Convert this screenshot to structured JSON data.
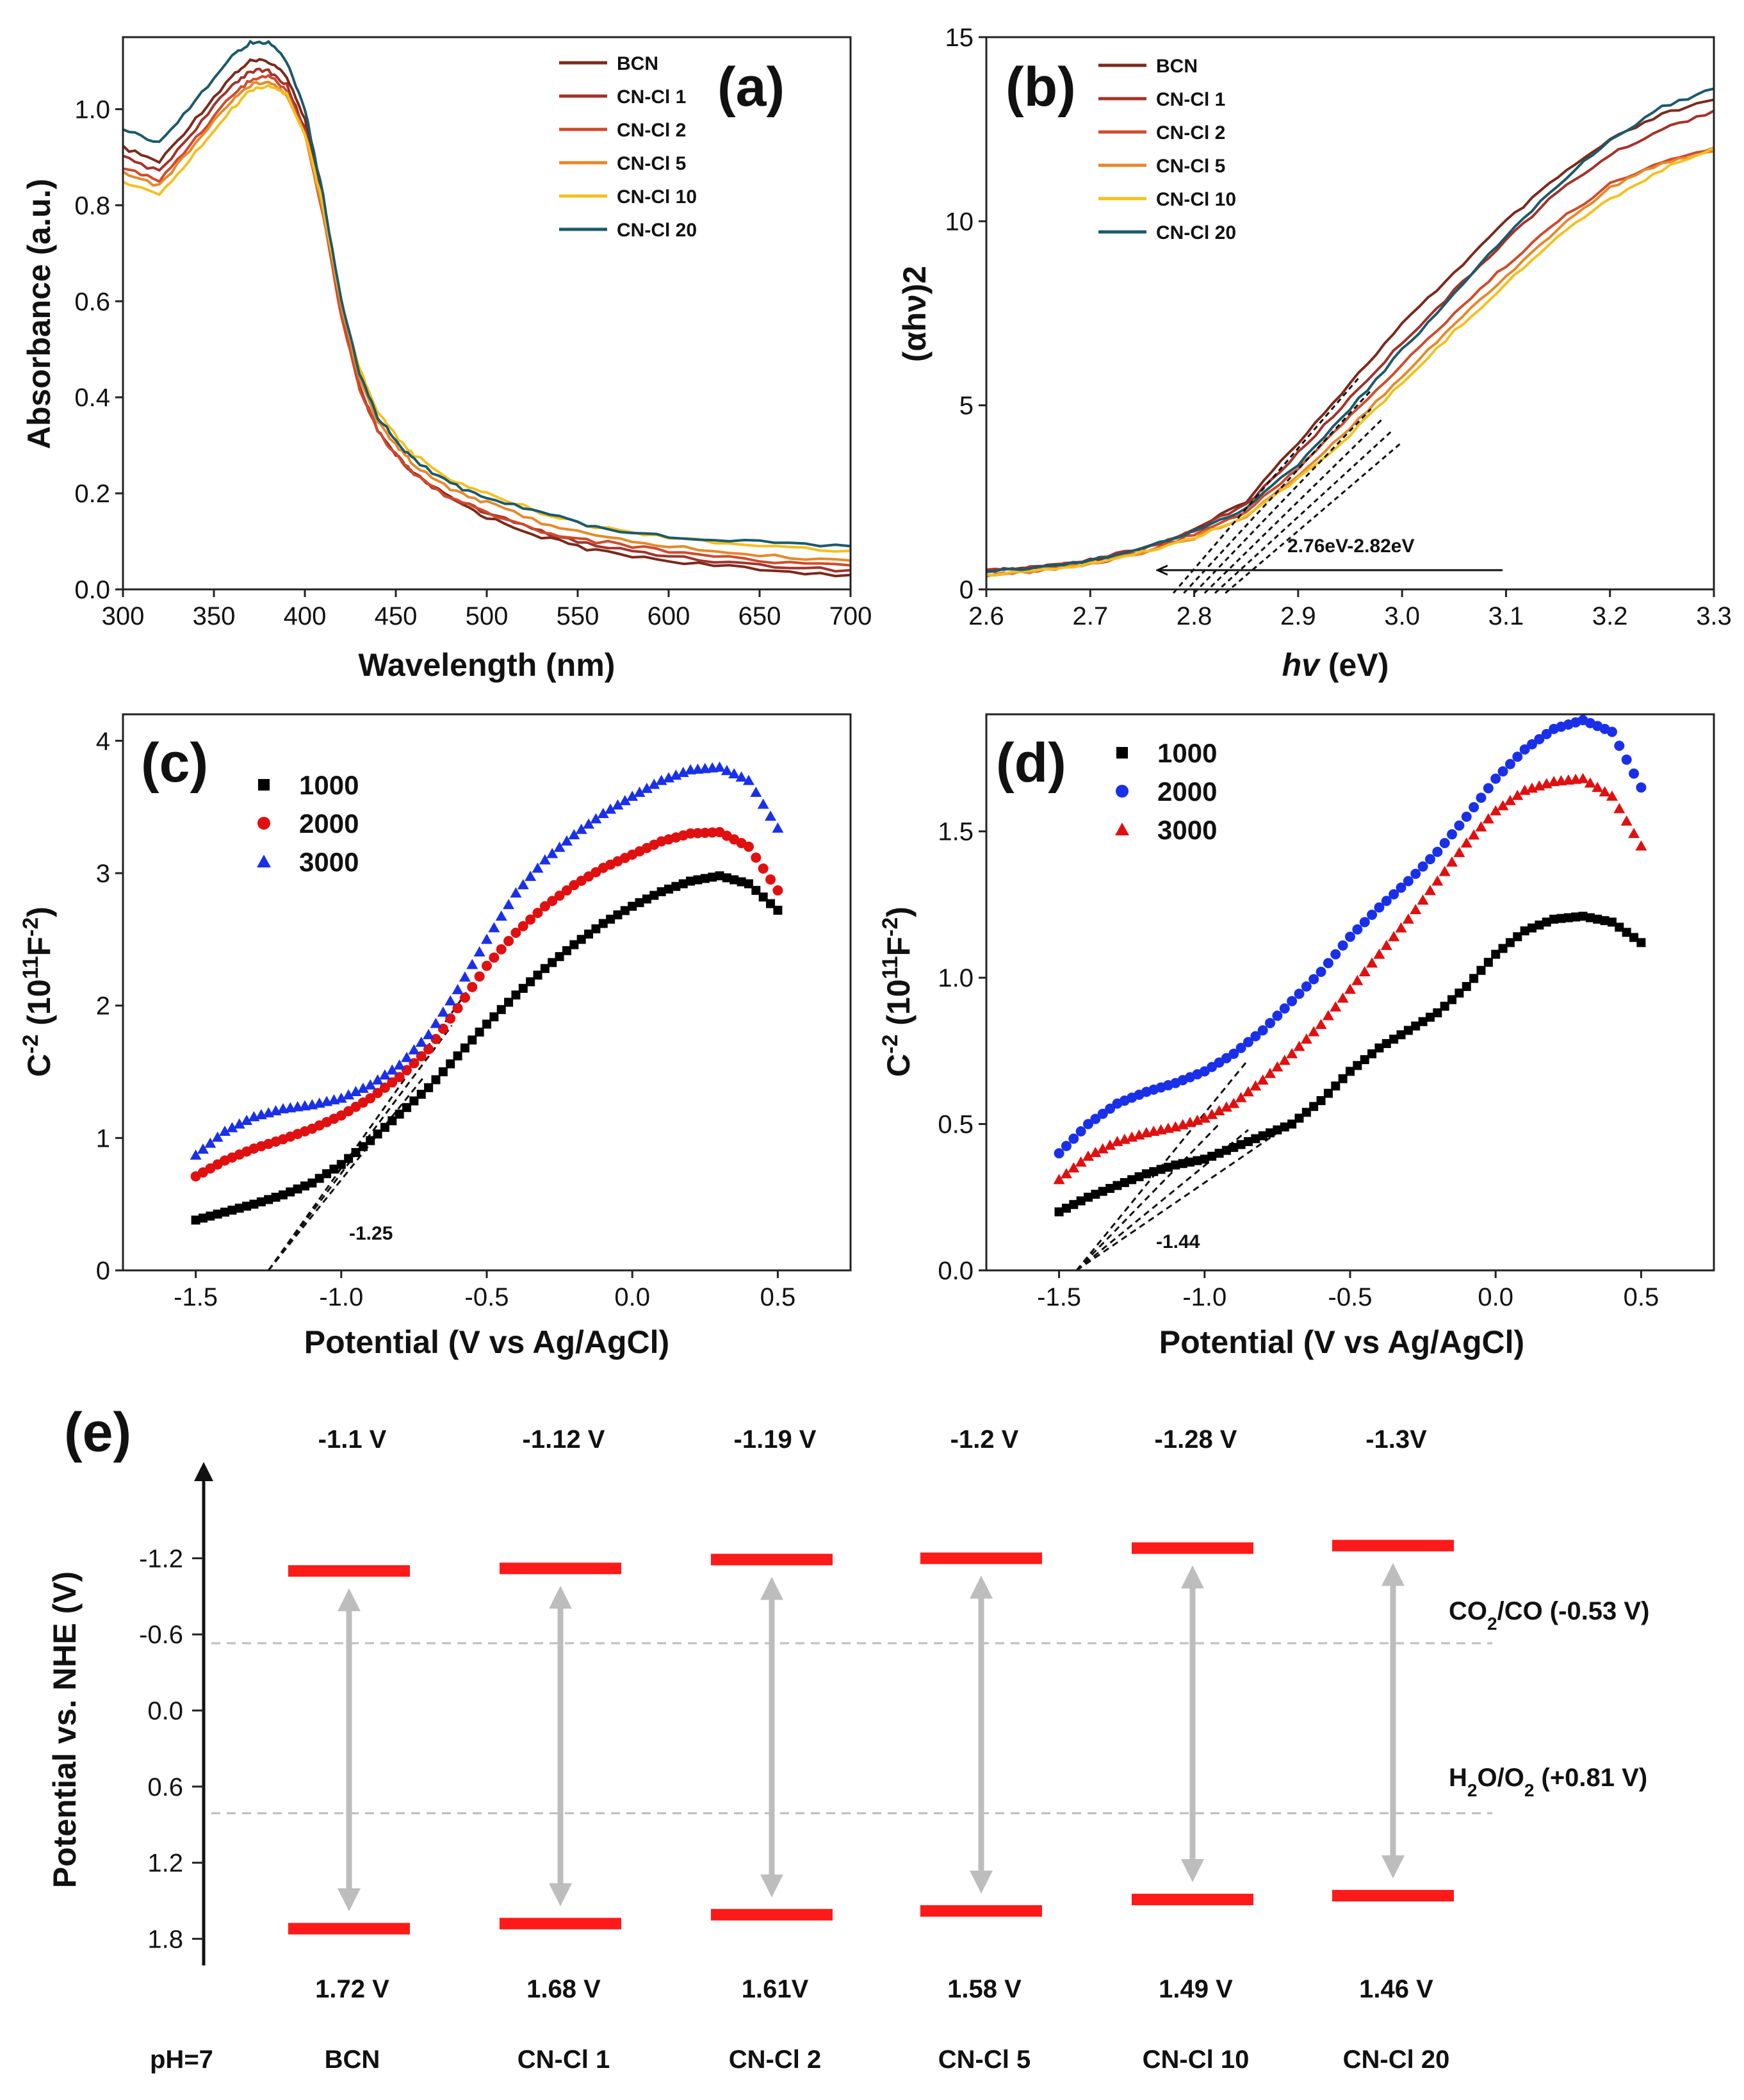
{
  "chart_data": [
    {
      "panel": "(a)",
      "type": "line",
      "xlabel": "Wavelength (nm)",
      "ylabel": "Absorbance (a.u.)",
      "xlim": [
        300,
        700
      ],
      "ylim": [
        0,
        1.15
      ],
      "xticks": [
        "300",
        "350",
        "400",
        "450",
        "500",
        "550",
        "600",
        "650",
        "700"
      ],
      "yticks": [
        "0.0",
        "0.2",
        "0.4",
        "0.6",
        "0.8",
        "1.0"
      ],
      "x": [
        300,
        320,
        340,
        360,
        370,
        380,
        390,
        400,
        410,
        420,
        430,
        440,
        450,
        460,
        480,
        500,
        530,
        560,
        600,
        650,
        700
      ],
      "series": [
        {
          "name": "BCN",
          "color": "#7b2a1c",
          "values": [
            0.92,
            0.89,
            0.98,
            1.07,
            1.1,
            1.1,
            1.07,
            0.98,
            0.8,
            0.58,
            0.42,
            0.33,
            0.28,
            0.24,
            0.19,
            0.15,
            0.11,
            0.08,
            0.06,
            0.04,
            0.03
          ]
        },
        {
          "name": "CN-Cl 1",
          "color": "#a3322a",
          "values": [
            0.9,
            0.87,
            0.96,
            1.05,
            1.08,
            1.08,
            1.05,
            0.96,
            0.79,
            0.58,
            0.42,
            0.33,
            0.28,
            0.24,
            0.19,
            0.16,
            0.12,
            0.09,
            0.07,
            0.05,
            0.04
          ]
        },
        {
          "name": "CN-Cl 2",
          "color": "#cf4b2c",
          "values": [
            0.88,
            0.85,
            0.94,
            1.03,
            1.06,
            1.07,
            1.04,
            0.95,
            0.78,
            0.57,
            0.42,
            0.33,
            0.28,
            0.24,
            0.19,
            0.16,
            0.12,
            0.1,
            0.08,
            0.06,
            0.05
          ]
        },
        {
          "name": "CN-Cl 5",
          "color": "#e5892b",
          "values": [
            0.87,
            0.84,
            0.93,
            1.02,
            1.05,
            1.06,
            1.03,
            0.95,
            0.79,
            0.59,
            0.44,
            0.35,
            0.3,
            0.26,
            0.21,
            0.18,
            0.14,
            0.11,
            0.09,
            0.07,
            0.06
          ]
        },
        {
          "name": "CN-Cl 10",
          "color": "#f3c01f",
          "values": [
            0.85,
            0.82,
            0.91,
            1.0,
            1.04,
            1.05,
            1.03,
            0.95,
            0.8,
            0.6,
            0.46,
            0.37,
            0.32,
            0.28,
            0.23,
            0.2,
            0.16,
            0.13,
            0.11,
            0.09,
            0.08
          ]
        },
        {
          "name": "CN-Cl 20",
          "color": "#1b5a6b",
          "values": [
            0.96,
            0.93,
            1.02,
            1.11,
            1.14,
            1.14,
            1.1,
            1.0,
            0.82,
            0.6,
            0.45,
            0.36,
            0.31,
            0.27,
            0.22,
            0.19,
            0.16,
            0.13,
            0.11,
            0.1,
            0.09
          ]
        }
      ]
    },
    {
      "panel": "(b)",
      "type": "line",
      "xlabel_italic": "hv",
      "xlabel_rest": " (eV)",
      "ylabel": "(αhν)2",
      "xlim": [
        2.6,
        3.3
      ],
      "ylim": [
        0,
        15
      ],
      "xticks": [
        "2.6",
        "2.7",
        "2.8",
        "2.9",
        "3.0",
        "3.1",
        "3.2",
        "3.3"
      ],
      "yticks": [
        "0",
        "5",
        "10",
        "15"
      ],
      "annotation": "2.76eV-2.82eV",
      "x": [
        2.6,
        2.65,
        2.7,
        2.75,
        2.8,
        2.85,
        2.9,
        2.95,
        3.0,
        3.05,
        3.1,
        3.15,
        3.2,
        3.25,
        3.3
      ],
      "series": [
        {
          "name": "BCN",
          "values": [
            0.5,
            0.6,
            0.8,
            1.1,
            1.6,
            2.4,
            4.0,
            5.6,
            7.2,
            8.6,
            10.0,
            11.2,
            12.2,
            12.9,
            13.3
          ]
        },
        {
          "name": "CN-Cl 1",
          "values": [
            0.5,
            0.6,
            0.8,
            1.1,
            1.6,
            2.3,
            3.7,
            5.2,
            6.7,
            8.1,
            9.5,
            10.8,
            11.8,
            12.5,
            13.0
          ]
        },
        {
          "name": "CN-Cl 2",
          "values": [
            0.4,
            0.5,
            0.7,
            1.0,
            1.5,
            2.1,
            3.3,
            4.7,
            6.1,
            7.5,
            8.8,
            10.0,
            11.0,
            11.6,
            12.0
          ]
        },
        {
          "name": "CN-Cl 5",
          "values": [
            0.4,
            0.5,
            0.7,
            1.0,
            1.4,
            2.0,
            3.1,
            4.4,
            5.8,
            7.2,
            8.5,
            9.8,
            10.9,
            11.6,
            11.9
          ]
        },
        {
          "name": "CN-Cl 10",
          "values": [
            0.4,
            0.5,
            0.7,
            1.0,
            1.4,
            2.0,
            3.0,
            4.2,
            5.6,
            7.0,
            8.3,
            9.6,
            10.6,
            11.4,
            12.0
          ]
        },
        {
          "name": "CN-Cl 20",
          "values": [
            0.5,
            0.6,
            0.8,
            1.1,
            1.6,
            2.2,
            3.4,
            4.9,
            6.5,
            8.0,
            9.6,
            11.0,
            12.2,
            13.1,
            13.6
          ]
        }
      ]
    },
    {
      "panel": "(c)",
      "type": "scatter",
      "xlabel": "Potential (V vs Ag/AgCl)",
      "ylabel_base": "C",
      "ylabel_exp": "-2",
      "ylabel_units": " (10",
      "ylabel_units_exp": "11",
      "ylabel_units_tail": "F",
      "ylabel_units_tail_exp": "-2",
      "ylabel_close": ")",
      "xlim": [
        -1.75,
        0.75
      ],
      "ylim": [
        0,
        4.2
      ],
      "xticks": [
        "-1.5",
        "-1.0",
        "-0.5",
        "0.0",
        "0.5"
      ],
      "yticks": [
        "0",
        "1",
        "2",
        "3",
        "4"
      ],
      "annotation": "-1.25",
      "x": [
        -1.5,
        -1.4,
        -1.3,
        -1.2,
        -1.1,
        -1.0,
        -0.9,
        -0.8,
        -0.7,
        -0.6,
        -0.5,
        -0.4,
        -0.3,
        -0.2,
        -0.1,
        0.0,
        0.1,
        0.2,
        0.3,
        0.4,
        0.5
      ],
      "series": [
        {
          "name": "1000",
          "color": "#000000",
          "marker": "square",
          "values": [
            0.38,
            0.44,
            0.5,
            0.57,
            0.66,
            0.8,
            0.98,
            1.18,
            1.38,
            1.62,
            1.86,
            2.08,
            2.28,
            2.46,
            2.62,
            2.75,
            2.86,
            2.94,
            2.98,
            2.92,
            2.72
          ]
        },
        {
          "name": "2000",
          "color": "#e01010",
          "marker": "circle",
          "values": [
            0.71,
            0.83,
            0.92,
            0.99,
            1.07,
            1.17,
            1.3,
            1.46,
            1.67,
            1.98,
            2.3,
            2.55,
            2.75,
            2.91,
            3.04,
            3.14,
            3.24,
            3.3,
            3.31,
            3.2,
            2.87
          ]
        },
        {
          "name": "3000",
          "color": "#1a30e8",
          "marker": "triangle",
          "values": [
            0.87,
            1.05,
            1.16,
            1.22,
            1.25,
            1.3,
            1.4,
            1.55,
            1.78,
            2.12,
            2.5,
            2.85,
            3.1,
            3.29,
            3.45,
            3.58,
            3.7,
            3.78,
            3.8,
            3.7,
            3.34
          ]
        }
      ]
    },
    {
      "panel": "(d)",
      "type": "scatter",
      "xlabel": "Potential (V vs Ag/AgCl)",
      "xlim": [
        -1.75,
        0.75
      ],
      "ylim": [
        0,
        1.9
      ],
      "xticks": [
        "-1.5",
        "-1.0",
        "-0.5",
        "0.0",
        "0.5"
      ],
      "yticks": [
        "0.0",
        "0.5",
        "1.0",
        "1.5"
      ],
      "annotation": "-1.44",
      "x": [
        -1.5,
        -1.4,
        -1.3,
        -1.2,
        -1.1,
        -1.0,
        -0.9,
        -0.8,
        -0.7,
        -0.6,
        -0.5,
        -0.4,
        -0.3,
        -0.2,
        -0.1,
        0.0,
        0.1,
        0.2,
        0.3,
        0.4,
        0.5
      ],
      "series": [
        {
          "name": "1000",
          "color": "#000000",
          "marker": "square",
          "values": [
            0.2,
            0.25,
            0.29,
            0.33,
            0.36,
            0.38,
            0.42,
            0.46,
            0.5,
            0.58,
            0.68,
            0.76,
            0.82,
            0.88,
            0.97,
            1.08,
            1.16,
            1.2,
            1.21,
            1.19,
            1.12
          ]
        },
        {
          "name": "2000",
          "color": "#1a30e8",
          "marker": "circle",
          "values": [
            0.4,
            0.5,
            0.57,
            0.61,
            0.64,
            0.68,
            0.74,
            0.82,
            0.92,
            1.02,
            1.14,
            1.24,
            1.33,
            1.43,
            1.55,
            1.68,
            1.78,
            1.85,
            1.88,
            1.84,
            1.65
          ]
        },
        {
          "name": "3000",
          "color": "#e01010",
          "marker": "triangle",
          "values": [
            0.31,
            0.39,
            0.44,
            0.47,
            0.49,
            0.52,
            0.57,
            0.65,
            0.74,
            0.84,
            0.96,
            1.08,
            1.2,
            1.33,
            1.46,
            1.57,
            1.64,
            1.67,
            1.68,
            1.62,
            1.45
          ]
        }
      ]
    },
    {
      "panel": "(e)",
      "type": "diagram",
      "ylabel": "Potential vs. NHE (V)",
      "ylim": [
        2.05,
        -1.75
      ],
      "yticks": [
        {
          "label": "-1.2",
          "value": -1.2
        },
        {
          "label": "-0.6",
          "value": -0.6
        },
        {
          "label": "0.0",
          "value": 0.0
        },
        {
          "label": "0.6",
          "value": 0.6
        },
        {
          "label": "1.2",
          "value": 1.2
        },
        {
          "label": "1.8",
          "value": 1.8
        }
      ],
      "ph_label": "pH=7",
      "reference_lines": [
        {
          "name": "CO2/CO",
          "value": -0.53,
          "label_main": "CO",
          "label_sub": "2",
          "label_tail": "/CO (-0.53 V)"
        },
        {
          "name": "H2O/O2",
          "value": 0.81,
          "label_main": "H",
          "label_sub": "2",
          "label_mid": "O/O",
          "label_sub2": "2",
          "label_tail": " (+0.81 V)"
        }
      ],
      "samples": [
        {
          "name": "BCN",
          "cb": -1.1,
          "vb": 1.72,
          "cb_label": "-1.1 V",
          "vb_label": "1.72 V"
        },
        {
          "name": "CN-Cl 1",
          "cb": -1.12,
          "vb": 1.68,
          "cb_label": "-1.12 V",
          "vb_label": "1.68 V"
        },
        {
          "name": "CN-Cl 2",
          "cb": -1.19,
          "vb": 1.61,
          "cb_label": "-1.19 V",
          "vb_label": "1.61V"
        },
        {
          "name": "CN-Cl 5",
          "cb": -1.2,
          "vb": 1.58,
          "cb_label": "-1.2 V",
          "vb_label": "1.58 V"
        },
        {
          "name": "CN-Cl 10",
          "cb": -1.28,
          "vb": 1.49,
          "cb_label": "-1.28 V",
          "vb_label": "1.49 V"
        },
        {
          "name": "CN-Cl 20",
          "cb": -1.3,
          "vb": 1.46,
          "cb_label": "-1.3V",
          "vb_label": "1.46 V"
        }
      ]
    }
  ]
}
